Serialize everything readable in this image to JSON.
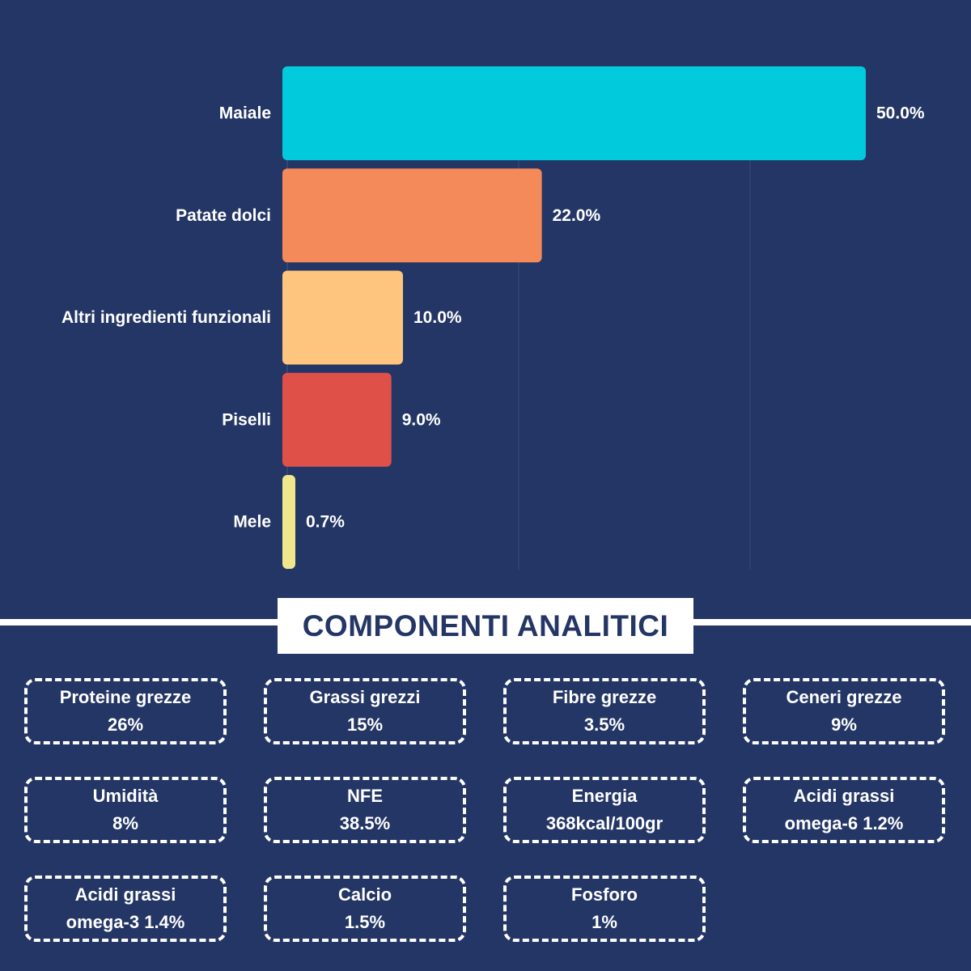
{
  "chart_data": {
    "type": "bar",
    "orientation": "horizontal",
    "categories": [
      "Maiale",
      "Patate dolci",
      "Altri ingredienti funzionali",
      "Piselli",
      "Mele"
    ],
    "values": [
      50.0,
      22.0,
      10.0,
      9.0,
      0.7
    ],
    "value_labels": [
      "50.0%",
      "22.0%",
      "10.0%",
      "9.0%",
      "0.7%"
    ],
    "colors": [
      "#00CADC",
      "#F4895A",
      "#FEC57E",
      "#DF5049",
      "#F0E68C"
    ],
    "xlim": [
      0,
      50
    ],
    "grid": "vertical"
  },
  "section": {
    "title": "COMPONENTI ANALITICI"
  },
  "cards": [
    {
      "label": "Proteine grezze",
      "value": "26%"
    },
    {
      "label": "Grassi grezzi",
      "value": "15%"
    },
    {
      "label": "Fibre grezze",
      "value": "3.5%"
    },
    {
      "label": "Ceneri grezze",
      "value": "9%"
    },
    {
      "label": "Umidità",
      "value": "8%"
    },
    {
      "label": "NFE",
      "value": "38.5%"
    },
    {
      "label": "Energia",
      "value": "368kcal/100gr"
    },
    {
      "label": "Acidi grassi",
      "value": "omega-6  1.2%"
    },
    {
      "label": "Acidi grassi",
      "value": "omega-3  1.4%"
    },
    {
      "label": "Calcio",
      "value": "1.5%"
    },
    {
      "label": "Fosforo",
      "value": "1%"
    }
  ],
  "colors": {
    "background": "#243665",
    "text": "#FFFFFF",
    "grid": "#33466F"
  }
}
